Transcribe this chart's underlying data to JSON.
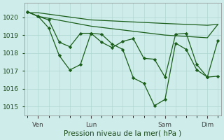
{
  "background_color": "#ceecea",
  "grid_color": "#aed4d0",
  "line_color": "#1a5e1a",
  "xlabel": "Pression niveau de la mer( hPa )",
  "ylim": [
    1014.5,
    1020.8
  ],
  "yticks": [
    1015,
    1016,
    1017,
    1018,
    1019,
    1020
  ],
  "xlim": [
    -0.3,
    18.3
  ],
  "xtick_labels": [
    "Ven",
    "Lun",
    "Sam",
    "Dim"
  ],
  "xtick_positions": [
    1,
    6,
    13,
    17
  ],
  "series_straight1": {
    "x": [
      0,
      1,
      6,
      13,
      17,
      18
    ],
    "y": [
      1020.25,
      1020.25,
      1019.85,
      1019.65,
      1019.55,
      1019.6
    ]
  },
  "series_straight2": {
    "x": [
      0,
      1,
      6,
      13,
      17,
      18
    ],
    "y": [
      1020.3,
      1020.05,
      1019.5,
      1019.0,
      1018.85,
      1019.6
    ]
  },
  "series_main": {
    "x": [
      0,
      1,
      2,
      3,
      4,
      5,
      6,
      7,
      8,
      9,
      10,
      11,
      12,
      13,
      14,
      15,
      16,
      17,
      18
    ],
    "y": [
      1020.3,
      1020.05,
      1019.4,
      1017.85,
      1017.05,
      1017.35,
      1019.1,
      1019.05,
      1018.5,
      1018.2,
      1016.6,
      1016.3,
      1015.05,
      1015.4,
      1018.55,
      1018.2,
      1017.05,
      1016.65,
      1016.7
    ]
  },
  "series_mid": {
    "x": [
      0,
      1,
      2,
      3,
      4,
      5,
      6,
      7,
      8,
      9,
      10,
      11,
      12,
      13,
      14,
      15,
      16,
      17,
      18
    ],
    "y": [
      1020.3,
      1020.05,
      1019.85,
      1018.6,
      1018.35,
      1019.1,
      1019.1,
      1018.6,
      1018.3,
      1018.65,
      1018.8,
      1017.7,
      1017.65,
      1016.65,
      1019.05,
      1019.1,
      1017.35,
      1016.65,
      1018.7
    ]
  }
}
